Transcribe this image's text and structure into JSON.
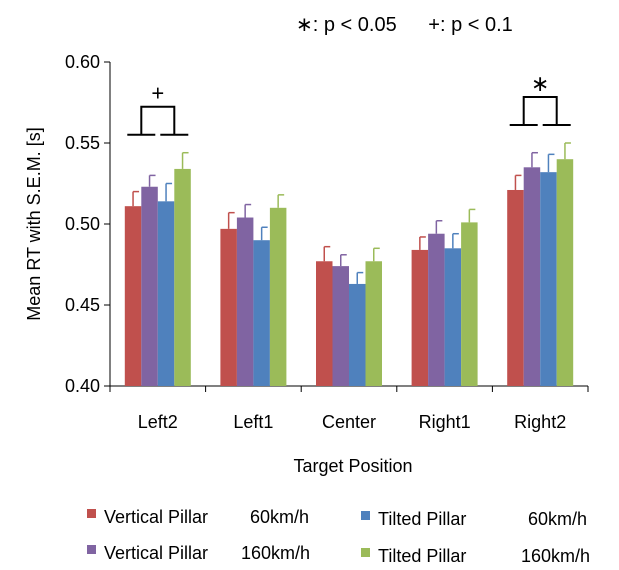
{
  "chart_data": {
    "type": "bar",
    "title": "",
    "xlabel": "Target Position",
    "ylabel": "Mean RT with S.E.M. [s]",
    "ylim": [
      0.4,
      0.6
    ],
    "yticks": [
      "0.40",
      "0.45",
      "0.50",
      "0.55",
      "0.60"
    ],
    "grid": false,
    "legend_placement": "bottom",
    "categories": [
      "Left2",
      "Left1",
      "Center",
      "Right1",
      "Right2"
    ],
    "series": [
      {
        "name": "Vertical Pillar 60km/h",
        "color": "#c0504d",
        "values": [
          0.511,
          0.497,
          0.477,
          0.484,
          0.521
        ],
        "errors": [
          0.009,
          0.01,
          0.009,
          0.008,
          0.009
        ]
      },
      {
        "name": "Vertical Pillar 160km/h",
        "color": "#8064a2",
        "values": [
          0.523,
          0.504,
          0.474,
          0.494,
          0.535
        ],
        "errors": [
          0.007,
          0.008,
          0.007,
          0.008,
          0.009
        ]
      },
      {
        "name": "Tilted Pillar 60km/h",
        "color": "#4f81bd",
        "values": [
          0.514,
          0.49,
          0.463,
          0.485,
          0.532
        ],
        "errors": [
          0.011,
          0.008,
          0.007,
          0.009,
          0.011
        ]
      },
      {
        "name": "Tilted Pillar 160km/h",
        "color": "#9bbb59",
        "values": [
          0.534,
          0.51,
          0.477,
          0.501,
          0.54
        ],
        "errors": [
          0.01,
          0.008,
          0.008,
          0.008,
          0.01
        ]
      }
    ],
    "significance_legend": {
      "star": "∗: p < 0.05",
      "plus": "+: p < 0.1"
    },
    "annotations": [
      {
        "category": "Left2",
        "symbol": "+"
      },
      {
        "category": "Right2",
        "symbol": "∗"
      }
    ]
  },
  "legend": {
    "items": [
      {
        "label": "Vertical Pillar",
        "speed": "60km/h",
        "color": "#c0504d"
      },
      {
        "label": "Tilted Pillar",
        "speed": "60km/h",
        "color": "#4f81bd"
      },
      {
        "label": "Vertical Pillar",
        "speed": "160km/h",
        "color": "#8064a2"
      },
      {
        "label": "Tilted Pillar",
        "speed": "160km/h",
        "color": "#9bbb59"
      }
    ]
  }
}
